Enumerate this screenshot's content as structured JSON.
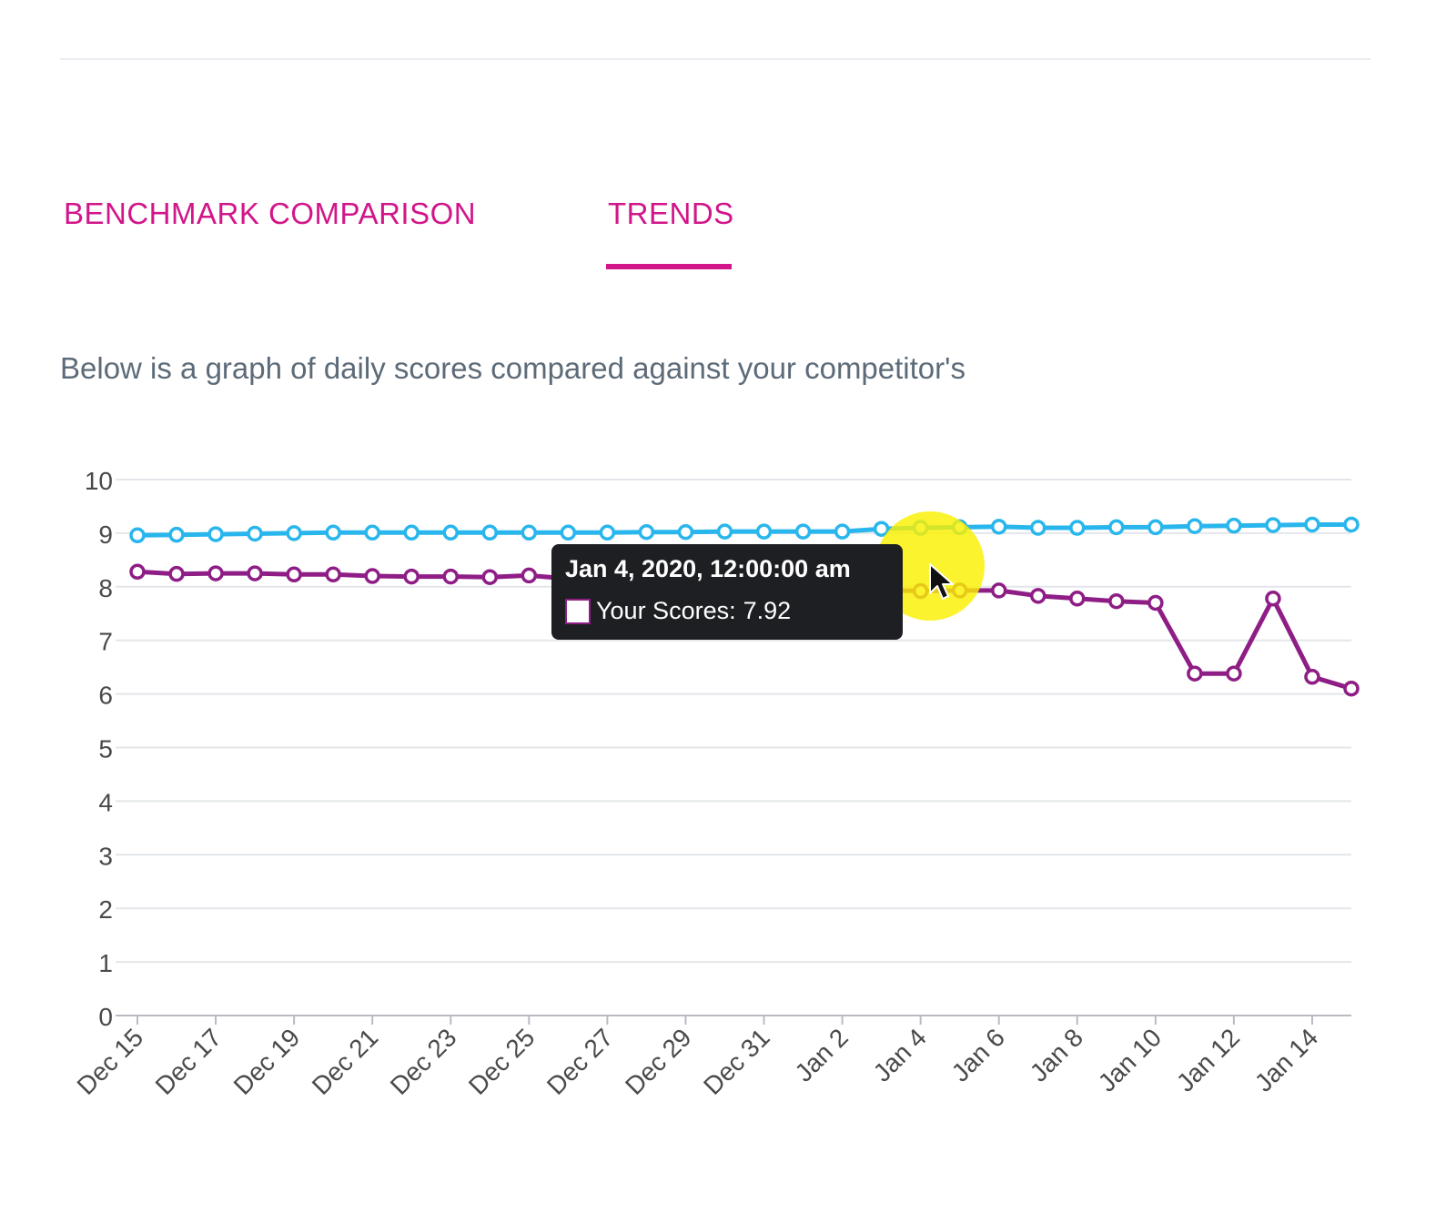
{
  "tabs": [
    {
      "label": "BENCHMARK COMPARISON",
      "active": false
    },
    {
      "label": "TRENDS",
      "active": true
    }
  ],
  "description": "Below is a graph of daily scores compared against your competitor's",
  "colors": {
    "accent": "#d1168a",
    "your_scores": "#8e1e86",
    "competitor": "#29b6ec"
  },
  "tooltip": {
    "title": "Jan 4, 2020, 12:00:00 am",
    "series_label": "Your Scores:",
    "value": "7.92"
  },
  "chart_data": {
    "type": "line",
    "x": [
      "Dec 15",
      "Dec 16",
      "Dec 17",
      "Dec 18",
      "Dec 19",
      "Dec 20",
      "Dec 21",
      "Dec 22",
      "Dec 23",
      "Dec 24",
      "Dec 25",
      "Dec 26",
      "Dec 27",
      "Dec 28",
      "Dec 29",
      "Dec 30",
      "Dec 31",
      "Jan 1",
      "Jan 2",
      "Jan 3",
      "Jan 4",
      "Jan 5",
      "Jan 6",
      "Jan 7",
      "Jan 8",
      "Jan 9",
      "Jan 10",
      "Jan 11",
      "Jan 12",
      "Jan 13",
      "Jan 14",
      "Jan 15"
    ],
    "x_tick_labels": [
      "Dec 15",
      "Dec 17",
      "Dec 19",
      "Dec 21",
      "Dec 23",
      "Dec 25",
      "Dec 27",
      "Dec 29",
      "Dec 31",
      "Jan 2",
      "Jan 4",
      "Jan 6",
      "Jan 8",
      "Jan 10",
      "Jan 12",
      "Jan 14"
    ],
    "ylim": [
      0,
      10
    ],
    "y_ticks": [
      0,
      1,
      2,
      3,
      4,
      5,
      6,
      7,
      8,
      9,
      10
    ],
    "grid": true,
    "legend": "none",
    "series": [
      {
        "name": "",
        "color": "#29b6ec",
        "values": [
          8.96,
          8.97,
          8.98,
          8.99,
          9.0,
          9.01,
          9.01,
          9.01,
          9.01,
          9.01,
          9.01,
          9.01,
          9.01,
          9.02,
          9.02,
          9.03,
          9.03,
          9.03,
          9.03,
          9.08,
          9.1,
          9.11,
          9.12,
          9.1,
          9.1,
          9.11,
          9.11,
          9.13,
          9.14,
          9.15,
          9.16,
          9.16
        ]
      },
      {
        "name": "Your Scores",
        "color": "#8e1e86",
        "values": [
          8.28,
          8.24,
          8.25,
          8.25,
          8.23,
          8.23,
          8.2,
          8.19,
          8.19,
          8.18,
          8.21,
          8.15,
          8.1,
          8.05,
          8.0,
          7.98,
          7.96,
          7.95,
          7.95,
          7.94,
          7.92,
          7.93,
          7.93,
          7.83,
          7.78,
          7.73,
          7.7,
          6.38,
          6.38,
          7.78,
          6.32,
          6.1
        ]
      }
    ]
  }
}
